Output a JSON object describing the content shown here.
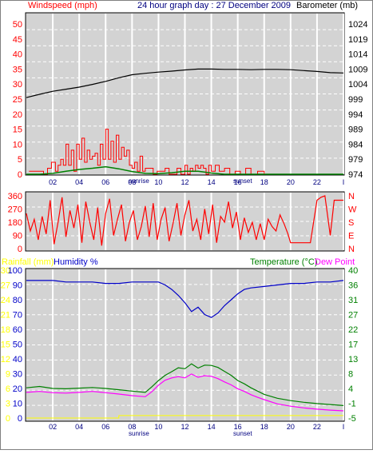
{
  "header": {
    "wind_label": "Windspeed (mph)",
    "title": "24 hour graph day : 27 December 2009",
    "baro_label": "Barometer (mb)"
  },
  "bottom_labels": {
    "rain_label": "Rainfall (mm)",
    "hum_label": "Humidity %",
    "temp_label": "Temperature (°C)",
    "dew_label": "Dew Point"
  },
  "x_axis": {
    "ticks": [
      "02",
      "04",
      "06",
      "08",
      "10",
      "12",
      "14",
      "16",
      "18",
      "20",
      "22",
      "I"
    ],
    "sunrise": "sunrise",
    "sunset": "sunset"
  },
  "colors": {
    "wind": "#ff0000",
    "gust": "#ff0000",
    "barometer": "#000000",
    "direction": "#ff0000",
    "humidity": "#0000c8",
    "temperature": "#008000",
    "dewpoint": "#ff00ff",
    "rainfall": "#ffff00",
    "title": "#000080",
    "panel": "#d3d3d3"
  },
  "chart_data": [
    {
      "type": "line",
      "title": "24 hour graph day : 27 December 2009",
      "x_range": [
        0,
        24
      ],
      "x_ticks": [
        "02",
        "04",
        "06",
        "08",
        "10",
        "12",
        "14",
        "16",
        "18",
        "20",
        "22",
        "I"
      ],
      "left_axis": {
        "label": "Windspeed (mph)",
        "ylim": [
          0,
          50
        ],
        "ticks": [
          "0",
          "5",
          "10",
          "15",
          "20",
          "25",
          "30",
          "35",
          "40",
          "45",
          "50"
        ]
      },
      "right_axis": {
        "label": "Barometer (mb)",
        "ylim": [
          974,
          1024
        ],
        "ticks": [
          "974",
          "979",
          "984",
          "989",
          "994",
          "999",
          "1004",
          "1009",
          "1014",
          "1019",
          "1024"
        ]
      },
      "series": [
        {
          "name": "Barometer (mb)",
          "axis": "right",
          "x": [
            0,
            1,
            2,
            3,
            4,
            5,
            6,
            7,
            8,
            9,
            10,
            11,
            12,
            13,
            14,
            15,
            16,
            17,
            18,
            19,
            20,
            21,
            22,
            23,
            24
          ],
          "values": [
            999.5,
            1000.6,
            1001.6,
            1002.3,
            1003.0,
            1003.9,
            1004.9,
            1006.1,
            1007.1,
            1007.6,
            1008.0,
            1008.3,
            1008.7,
            1009.0,
            1009.0,
            1008.9,
            1008.9,
            1008.8,
            1008.9,
            1008.9,
            1008.8,
            1008.5,
            1008.2,
            1007.8,
            1007.7
          ]
        },
        {
          "name": "Windspeed (mph)",
          "axis": "left",
          "x": [
            0,
            1,
            2,
            3,
            4,
            5,
            6,
            7,
            8,
            9,
            10,
            11,
            12,
            13,
            14,
            15,
            16,
            17,
            18,
            19,
            20,
            21,
            22,
            23,
            24
          ],
          "values": [
            0,
            0,
            0.3,
            1.0,
            1.6,
            2.0,
            2.5,
            1.8,
            0.9,
            0.3,
            0.2,
            0.5,
            1.0,
            1.0,
            0.4,
            0,
            0,
            0,
            0,
            0,
            0,
            0,
            0,
            0,
            0
          ]
        },
        {
          "name": "Gust (mph)",
          "axis": "left",
          "x": [
            0.2,
            0.5,
            0.9,
            1.3,
            1.6,
            1.9,
            2.2,
            2.4,
            2.6,
            2.8,
            3.0,
            3.2,
            3.4,
            3.6,
            3.8,
            4.0,
            4.2,
            4.4,
            4.6,
            4.8,
            5.0,
            5.2,
            5.4,
            5.6,
            5.8,
            6.0,
            6.2,
            6.4,
            6.6,
            6.8,
            7.0,
            7.2,
            7.4,
            7.6,
            7.8,
            8.0,
            8.2,
            8.4,
            8.6,
            8.8,
            9.0,
            9.3,
            9.6,
            9.9,
            10.2,
            10.5,
            10.8,
            11.1,
            11.4,
            11.7,
            12.0,
            12.2,
            12.4,
            12.6,
            12.8,
            13.0,
            13.2,
            13.4,
            13.6,
            13.8,
            14.0,
            14.3,
            14.6,
            15.0,
            15.4,
            15.8,
            16.2,
            16.6,
            17.0,
            17.5,
            18.0,
            19.0,
            20.0,
            21.0,
            22.0,
            23.0,
            24.0
          ],
          "values": [
            1,
            1,
            1,
            0,
            2,
            4,
            1,
            3,
            5,
            3,
            10,
            3,
            8,
            1,
            10,
            5,
            12,
            4,
            8,
            5,
            6,
            7,
            3,
            10,
            5,
            15,
            5,
            11,
            4,
            13,
            5,
            9,
            6,
            8,
            3,
            2,
            4,
            1,
            6,
            1,
            2,
            2,
            0,
            1,
            1,
            2,
            0,
            0,
            2,
            0,
            3,
            0,
            2,
            1,
            3,
            2,
            3,
            2,
            0,
            3,
            1,
            3,
            1,
            2,
            0,
            1,
            0,
            2,
            0,
            1,
            0,
            0,
            0,
            0,
            0,
            0,
            0
          ]
        }
      ]
    },
    {
      "type": "line",
      "title": "Wind direction",
      "x_range": [
        0,
        24
      ],
      "left_axis": {
        "ylim": [
          0,
          360
        ],
        "ticks": [
          "0",
          "90",
          "180",
          "270",
          "360"
        ]
      },
      "right_axis": {
        "ticks": [
          "N",
          "E",
          "S",
          "W",
          "N"
        ]
      },
      "series": [
        {
          "name": "Wind direction (degrees)",
          "x": [
            0,
            0.3,
            0.6,
            0.9,
            1.2,
            1.5,
            1.8,
            2.1,
            2.4,
            2.7,
            3.0,
            3.3,
            3.6,
            3.9,
            4.2,
            4.5,
            4.8,
            5.1,
            5.4,
            5.7,
            6.0,
            6.3,
            6.6,
            6.9,
            7.2,
            7.5,
            7.8,
            8.1,
            8.4,
            8.7,
            9.0,
            9.3,
            9.6,
            9.9,
            10.2,
            10.5,
            10.8,
            11.1,
            11.4,
            11.7,
            12.0,
            12.3,
            12.6,
            12.9,
            13.2,
            13.5,
            13.8,
            14.1,
            14.4,
            14.7,
            15.0,
            15.3,
            15.6,
            15.9,
            16.2,
            16.5,
            16.8,
            17.1,
            17.4,
            17.7,
            18.0,
            18.3,
            18.6,
            18.9,
            19.2,
            19.5,
            19.8,
            20.0,
            20.5,
            21.0,
            21.5,
            22.0,
            22.3,
            22.6,
            23.0,
            23.3,
            23.6,
            24.0
          ],
          "values": [
            240,
            120,
            200,
            60,
            220,
            100,
            330,
            30,
            180,
            350,
            80,
            260,
            140,
            300,
            40,
            320,
            180,
            60,
            280,
            20,
            240,
            340,
            90,
            200,
            300,
            50,
            180,
            260,
            60,
            150,
            290,
            80,
            310,
            60,
            200,
            280,
            50,
            170,
            310,
            90,
            230,
            330,
            120,
            200,
            60,
            270,
            100,
            300,
            40,
            220,
            180,
            320,
            140,
            250,
            60,
            210,
            110,
            180,
            60,
            170,
            60,
            200,
            150,
            120,
            230,
            170,
            100,
            40,
            40,
            40,
            40,
            330,
            350,
            360,
            90,
            330,
            330,
            330
          ]
        }
      ]
    },
    {
      "type": "line",
      "title": "Temperature, Humidity, Dew Point, Rainfall",
      "x_range": [
        0,
        24
      ],
      "left_axis": {
        "label": "Humidity %",
        "ylim": [
          0,
          100
        ],
        "ticks": [
          "0",
          "10",
          "20",
          "30",
          "40",
          "50",
          "60",
          "70",
          "80",
          "90",
          "100"
        ]
      },
      "left_axis_2": {
        "label": "Rainfall (mm)",
        "ylim": [
          0,
          30
        ],
        "ticks": [
          "0",
          "3",
          "6",
          "9",
          "12",
          "15",
          "18",
          "21",
          "24",
          "27",
          "30"
        ]
      },
      "right_axis": {
        "label": "Temperature (°C)",
        "ylim": [
          -5,
          40
        ],
        "ticks": [
          "-5",
          "-1",
          "4",
          "8",
          "13",
          "17",
          "22",
          "27",
          "31",
          "36",
          "40"
        ]
      },
      "series": [
        {
          "name": "Humidity %",
          "axis": "left",
          "x": [
            0,
            1,
            2,
            3,
            4,
            5,
            6,
            7,
            8,
            9,
            10,
            10.5,
            11,
            11.5,
            12,
            12.5,
            13,
            13.5,
            14,
            14.5,
            15,
            15.5,
            16,
            16.5,
            17,
            18,
            19,
            20,
            21,
            22,
            23,
            24
          ],
          "values": [
            93,
            93,
            93,
            92,
            92,
            92,
            91,
            91,
            92,
            92,
            92,
            90,
            87,
            83,
            78,
            72,
            75,
            70,
            68,
            71,
            76,
            80,
            84,
            87,
            88,
            89,
            90,
            91,
            91,
            92,
            92,
            93
          ]
        },
        {
          "name": "Temperature (°C)",
          "axis": "right",
          "x": [
            0,
            1,
            2,
            3,
            4,
            5,
            6,
            7,
            8,
            9,
            9.5,
            10,
            10.5,
            11,
            11.5,
            12,
            12.5,
            13,
            13.5,
            14,
            14.5,
            15,
            15.5,
            16,
            16.5,
            17,
            17.5,
            18,
            19,
            20,
            21,
            22,
            23,
            24
          ],
          "values": [
            4.2,
            4.6,
            4.0,
            3.9,
            4.1,
            4.3,
            4.0,
            3.6,
            3.2,
            2.8,
            4.5,
            6.4,
            8.0,
            9.1,
            10.3,
            10.0,
            11.5,
            10.2,
            11.1,
            11.0,
            10.4,
            9.2,
            8.0,
            6.4,
            5.4,
            4.2,
            3.2,
            2.2,
            1.0,
            0.3,
            -0.2,
            -0.6,
            -0.9,
            -1.2
          ]
        },
        {
          "name": "Dew Point",
          "axis": "right",
          "x": [
            0,
            1,
            2,
            3,
            4,
            5,
            6,
            7,
            8,
            9,
            9.5,
            10,
            10.5,
            11,
            11.5,
            12,
            12.5,
            13,
            13.5,
            14,
            14.5,
            15,
            15.5,
            16,
            16.5,
            17,
            17.5,
            18,
            19,
            20,
            21,
            22,
            23,
            24
          ],
          "values": [
            2.8,
            3.1,
            2.7,
            2.6,
            2.8,
            3.1,
            2.7,
            2.3,
            1.8,
            1.5,
            3.0,
            5.0,
            6.5,
            7.2,
            7.6,
            7.2,
            8.4,
            7.4,
            7.9,
            7.7,
            7.0,
            6.0,
            5.1,
            3.9,
            3.1,
            2.1,
            1.3,
            0.6,
            -0.7,
            -1.4,
            -1.9,
            -2.3,
            -2.6,
            -2.8
          ]
        },
        {
          "name": "Rainfall (mm)",
          "axis": "left_2",
          "x": [
            0,
            6.5,
            7.0,
            24
          ],
          "values": [
            0,
            0,
            0.5,
            0.5
          ]
        }
      ]
    }
  ]
}
